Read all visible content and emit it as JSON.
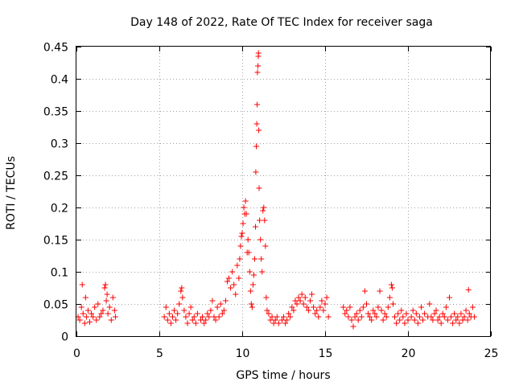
{
  "chart_data": {
    "type": "scatter",
    "title": "Day 148 of 2022, Rate Of TEC Index for receiver saga",
    "xlabel": "GPS time / hours",
    "ylabel": "ROTI / TECUs",
    "xlim": [
      0,
      25
    ],
    "ylim": [
      0,
      0.45
    ],
    "xticks": [
      0,
      5,
      10,
      15,
      20,
      25
    ],
    "yticks": [
      0,
      0.05,
      0.1,
      0.15,
      0.2,
      0.25,
      0.3,
      0.35,
      0.4,
      0.45
    ],
    "grid": true,
    "marker": "+",
    "color": "#ff0000",
    "series": [
      {
        "name": "ROTI",
        "points": [
          [
            0.1,
            0.03
          ],
          [
            0.2,
            0.025
          ],
          [
            0.3,
            0.045
          ],
          [
            0.35,
            0.08
          ],
          [
            0.4,
            0.035
          ],
          [
            0.5,
            0.02
          ],
          [
            0.55,
            0.06
          ],
          [
            0.6,
            0.03
          ],
          [
            0.7,
            0.04
          ],
          [
            0.8,
            0.022
          ],
          [
            0.9,
            0.035
          ],
          [
            1.0,
            0.03
          ],
          [
            1.1,
            0.045
          ],
          [
            1.2,
            0.025
          ],
          [
            1.3,
            0.05
          ],
          [
            1.4,
            0.03
          ],
          [
            1.5,
            0.035
          ],
          [
            1.6,
            0.04
          ],
          [
            1.7,
            0.075
          ],
          [
            1.75,
            0.08
          ],
          [
            1.8,
            0.055
          ],
          [
            1.85,
            0.065
          ],
          [
            1.9,
            0.035
          ],
          [
            2.0,
            0.045
          ],
          [
            2.1,
            0.025
          ],
          [
            2.2,
            0.06
          ],
          [
            2.3,
            0.04
          ],
          [
            2.35,
            0.03
          ],
          [
            5.3,
            0.03
          ],
          [
            5.4,
            0.045
          ],
          [
            5.5,
            0.025
          ],
          [
            5.6,
            0.035
          ],
          [
            5.7,
            0.02
          ],
          [
            5.8,
            0.03
          ],
          [
            5.9,
            0.04
          ],
          [
            6.0,
            0.025
          ],
          [
            6.1,
            0.035
          ],
          [
            6.2,
            0.05
          ],
          [
            6.3,
            0.07
          ],
          [
            6.35,
            0.075
          ],
          [
            6.4,
            0.06
          ],
          [
            6.5,
            0.04
          ],
          [
            6.6,
            0.03
          ],
          [
            6.7,
            0.02
          ],
          [
            6.8,
            0.035
          ],
          [
            6.9,
            0.045
          ],
          [
            7.0,
            0.025
          ],
          [
            7.1,
            0.03
          ],
          [
            7.2,
            0.02
          ],
          [
            7.3,
            0.035
          ],
          [
            7.5,
            0.025
          ],
          [
            7.6,
            0.03
          ],
          [
            7.7,
            0.02
          ],
          [
            7.8,
            0.025
          ],
          [
            7.9,
            0.035
          ],
          [
            8.0,
            0.03
          ],
          [
            8.1,
            0.04
          ],
          [
            8.2,
            0.055
          ],
          [
            8.3,
            0.03
          ],
          [
            8.4,
            0.025
          ],
          [
            8.5,
            0.045
          ],
          [
            8.6,
            0.03
          ],
          [
            8.7,
            0.05
          ],
          [
            8.8,
            0.035
          ],
          [
            8.9,
            0.04
          ],
          [
            9.0,
            0.055
          ],
          [
            9.1,
            0.085
          ],
          [
            9.2,
            0.09
          ],
          [
            9.3,
            0.075
          ],
          [
            9.4,
            0.1
          ],
          [
            9.5,
            0.08
          ],
          [
            9.6,
            0.065
          ],
          [
            9.7,
            0.11
          ],
          [
            9.8,
            0.09
          ],
          [
            9.85,
            0.12
          ],
          [
            9.9,
            0.14
          ],
          [
            9.95,
            0.155
          ],
          [
            10.0,
            0.16
          ],
          [
            10.05,
            0.175
          ],
          [
            10.1,
            0.2
          ],
          [
            10.15,
            0.19
          ],
          [
            10.2,
            0.21
          ],
          [
            10.25,
            0.19
          ],
          [
            10.3,
            0.13
          ],
          [
            10.35,
            0.15
          ],
          [
            10.4,
            0.13
          ],
          [
            10.45,
            0.1
          ],
          [
            10.5,
            0.07
          ],
          [
            10.55,
            0.05
          ],
          [
            10.6,
            0.045
          ],
          [
            10.65,
            0.08
          ],
          [
            10.7,
            0.095
          ],
          [
            10.75,
            0.12
          ],
          [
            10.8,
            0.17
          ],
          [
            10.82,
            0.255
          ],
          [
            10.85,
            0.295
          ],
          [
            10.88,
            0.33
          ],
          [
            10.9,
            0.36
          ],
          [
            10.92,
            0.41
          ],
          [
            10.95,
            0.42
          ],
          [
            10.97,
            0.435
          ],
          [
            10.98,
            0.44
          ],
          [
            11.0,
            0.32
          ],
          [
            11.02,
            0.23
          ],
          [
            11.05,
            0.18
          ],
          [
            11.1,
            0.15
          ],
          [
            11.15,
            0.12
          ],
          [
            11.2,
            0.1
          ],
          [
            11.25,
            0.195
          ],
          [
            11.3,
            0.2
          ],
          [
            11.35,
            0.18
          ],
          [
            11.4,
            0.14
          ],
          [
            11.45,
            0.06
          ],
          [
            11.5,
            0.04
          ],
          [
            11.6,
            0.035
          ],
          [
            11.7,
            0.025
          ],
          [
            11.8,
            0.03
          ],
          [
            11.9,
            0.02
          ],
          [
            12.0,
            0.025
          ],
          [
            12.1,
            0.03
          ],
          [
            12.2,
            0.02
          ],
          [
            12.4,
            0.025
          ],
          [
            12.5,
            0.03
          ],
          [
            12.6,
            0.02
          ],
          [
            12.7,
            0.025
          ],
          [
            12.8,
            0.035
          ],
          [
            12.9,
            0.03
          ],
          [
            13.0,
            0.045
          ],
          [
            13.1,
            0.04
          ],
          [
            13.2,
            0.055
          ],
          [
            13.3,
            0.05
          ],
          [
            13.4,
            0.06
          ],
          [
            13.5,
            0.055
          ],
          [
            13.6,
            0.065
          ],
          [
            13.7,
            0.05
          ],
          [
            13.8,
            0.06
          ],
          [
            13.9,
            0.045
          ],
          [
            14.0,
            0.04
          ],
          [
            14.1,
            0.055
          ],
          [
            14.2,
            0.065
          ],
          [
            14.3,
            0.045
          ],
          [
            14.4,
            0.035
          ],
          [
            14.5,
            0.04
          ],
          [
            14.6,
            0.03
          ],
          [
            14.7,
            0.045
          ],
          [
            14.8,
            0.055
          ],
          [
            14.9,
            0.04
          ],
          [
            15.0,
            0.05
          ],
          [
            15.1,
            0.06
          ],
          [
            15.2,
            0.03
          ],
          [
            16.1,
            0.045
          ],
          [
            16.2,
            0.035
          ],
          [
            16.3,
            0.04
          ],
          [
            16.4,
            0.03
          ],
          [
            16.5,
            0.045
          ],
          [
            16.6,
            0.025
          ],
          [
            16.7,
            0.015
          ],
          [
            16.8,
            0.03
          ],
          [
            16.9,
            0.035
          ],
          [
            17.0,
            0.025
          ],
          [
            17.1,
            0.04
          ],
          [
            17.2,
            0.03
          ],
          [
            17.3,
            0.045
          ],
          [
            17.4,
            0.07
          ],
          [
            17.5,
            0.05
          ],
          [
            17.6,
            0.035
          ],
          [
            17.7,
            0.03
          ],
          [
            17.8,
            0.025
          ],
          [
            17.9,
            0.04
          ],
          [
            18.0,
            0.035
          ],
          [
            18.1,
            0.03
          ],
          [
            18.2,
            0.045
          ],
          [
            18.3,
            0.07
          ],
          [
            18.4,
            0.04
          ],
          [
            18.5,
            0.025
          ],
          [
            18.6,
            0.035
          ],
          [
            18.7,
            0.03
          ],
          [
            18.8,
            0.045
          ],
          [
            18.9,
            0.06
          ],
          [
            19.0,
            0.08
          ],
          [
            19.05,
            0.075
          ],
          [
            19.1,
            0.05
          ],
          [
            19.2,
            0.03
          ],
          [
            19.3,
            0.02
          ],
          [
            19.4,
            0.035
          ],
          [
            19.5,
            0.025
          ],
          [
            19.6,
            0.04
          ],
          [
            19.7,
            0.03
          ],
          [
            19.8,
            0.02
          ],
          [
            19.9,
            0.035
          ],
          [
            20.0,
            0.025
          ],
          [
            20.2,
            0.03
          ],
          [
            20.3,
            0.04
          ],
          [
            20.4,
            0.025
          ],
          [
            20.5,
            0.035
          ],
          [
            20.6,
            0.02
          ],
          [
            20.7,
            0.03
          ],
          [
            20.8,
            0.045
          ],
          [
            20.9,
            0.025
          ],
          [
            21.0,
            0.035
          ],
          [
            21.2,
            0.03
          ],
          [
            21.3,
            0.05
          ],
          [
            21.4,
            0.03
          ],
          [
            21.5,
            0.025
          ],
          [
            21.6,
            0.035
          ],
          [
            21.7,
            0.04
          ],
          [
            21.8,
            0.025
          ],
          [
            21.9,
            0.03
          ],
          [
            22.0,
            0.02
          ],
          [
            22.1,
            0.035
          ],
          [
            22.2,
            0.03
          ],
          [
            22.3,
            0.045
          ],
          [
            22.4,
            0.025
          ],
          [
            22.5,
            0.06
          ],
          [
            22.6,
            0.03
          ],
          [
            22.7,
            0.02
          ],
          [
            22.8,
            0.035
          ],
          [
            22.9,
            0.025
          ],
          [
            23.0,
            0.03
          ],
          [
            23.1,
            0.02
          ],
          [
            23.2,
            0.035
          ],
          [
            23.3,
            0.025
          ],
          [
            23.4,
            0.03
          ],
          [
            23.5,
            0.04
          ],
          [
            23.6,
            0.025
          ],
          [
            23.65,
            0.072
          ],
          [
            23.7,
            0.035
          ],
          [
            23.8,
            0.03
          ],
          [
            23.9,
            0.045
          ],
          [
            24.0,
            0.03
          ]
        ]
      }
    ]
  }
}
